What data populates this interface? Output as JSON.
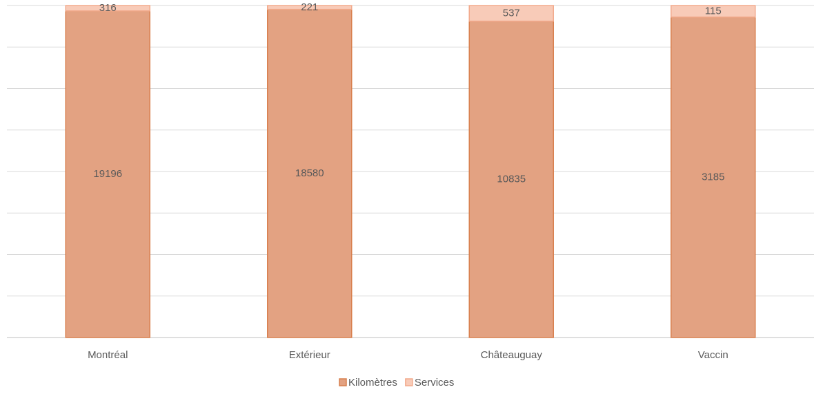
{
  "chart_data": {
    "type": "stacked_bar",
    "stacking": "percent",
    "categories": [
      "Montréal",
      "Extérieur",
      "Châteauguay",
      "Vaccin"
    ],
    "series": [
      {
        "name": "Kilomètres",
        "color": "#e3a282",
        "border": "#d8804f",
        "values": [
          19196,
          18580,
          10835,
          3185
        ]
      },
      {
        "name": "Services",
        "color": "#f8cbb8",
        "border": "#f2aa8c",
        "values": [
          316,
          221,
          537,
          115
        ]
      }
    ],
    "ylim": [
      0,
      100
    ],
    "yticks": [
      0,
      12.5,
      25,
      37.5,
      50,
      62.5,
      75,
      87.5,
      100
    ],
    "grid": true,
    "legend": "bottom"
  }
}
